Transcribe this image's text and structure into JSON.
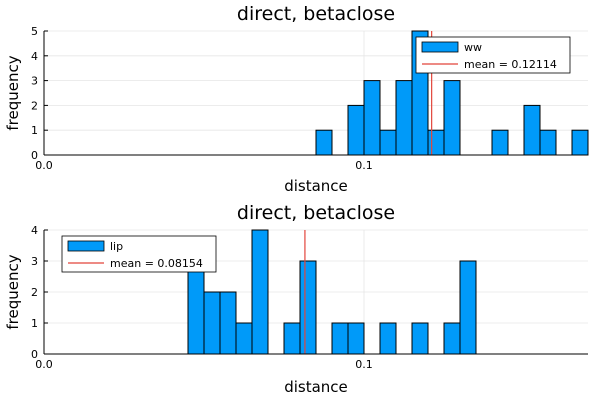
{
  "chart_data": [
    {
      "type": "bar",
      "title": "direct, betaclose",
      "xlabel": "distance",
      "ylabel": "frequency",
      "xlim": [
        0.0,
        0.17
      ],
      "ylim": [
        0,
        5
      ],
      "xticks": [
        0.0,
        0.1
      ],
      "xtick_labels": [
        "0.0",
        "0.1"
      ],
      "yticks": [
        0,
        1,
        2,
        3,
        4,
        5
      ],
      "bin_width": 0.005,
      "bins": [
        {
          "x": 0.085,
          "y": 1
        },
        {
          "x": 0.095,
          "y": 2
        },
        {
          "x": 0.1,
          "y": 3
        },
        {
          "x": 0.105,
          "y": 1
        },
        {
          "x": 0.11,
          "y": 3
        },
        {
          "x": 0.115,
          "y": 5
        },
        {
          "x": 0.12,
          "y": 1
        },
        {
          "x": 0.125,
          "y": 3
        },
        {
          "x": 0.14,
          "y": 1
        },
        {
          "x": 0.15,
          "y": 2
        },
        {
          "x": 0.155,
          "y": 1
        },
        {
          "x": 0.165,
          "y": 1
        }
      ],
      "series": [
        {
          "name": "ww",
          "kind": "histogram"
        },
        {
          "name": "mean = 0.12114",
          "kind": "vline",
          "value": 0.12114
        }
      ],
      "legend": "top-right",
      "grid": true,
      "colors": {
        "bars": "#009AF9",
        "mean": "#E2453B"
      }
    },
    {
      "type": "bar",
      "title": "direct, betaclose",
      "xlabel": "distance",
      "ylabel": "frequency",
      "xlim": [
        0.0,
        0.17
      ],
      "ylim": [
        0,
        4
      ],
      "xticks": [
        0.0,
        0.1
      ],
      "xtick_labels": [
        "0.0",
        "0.1"
      ],
      "yticks": [
        0,
        1,
        2,
        3,
        4
      ],
      "bin_width": 0.005,
      "bins": [
        {
          "x": 0.045,
          "y": 3
        },
        {
          "x": 0.05,
          "y": 2
        },
        {
          "x": 0.055,
          "y": 2
        },
        {
          "x": 0.06,
          "y": 1
        },
        {
          "x": 0.065,
          "y": 4
        },
        {
          "x": 0.075,
          "y": 1
        },
        {
          "x": 0.08,
          "y": 3
        },
        {
          "x": 0.09,
          "y": 1
        },
        {
          "x": 0.095,
          "y": 1
        },
        {
          "x": 0.105,
          "y": 1
        },
        {
          "x": 0.115,
          "y": 1
        },
        {
          "x": 0.125,
          "y": 1
        },
        {
          "x": 0.13,
          "y": 3
        }
      ],
      "series": [
        {
          "name": "lip",
          "kind": "histogram"
        },
        {
          "name": "mean = 0.08154",
          "kind": "vline",
          "value": 0.08154
        }
      ],
      "legend": "top-left",
      "grid": true,
      "colors": {
        "bars": "#009AF9",
        "mean": "#E2453B"
      }
    }
  ]
}
